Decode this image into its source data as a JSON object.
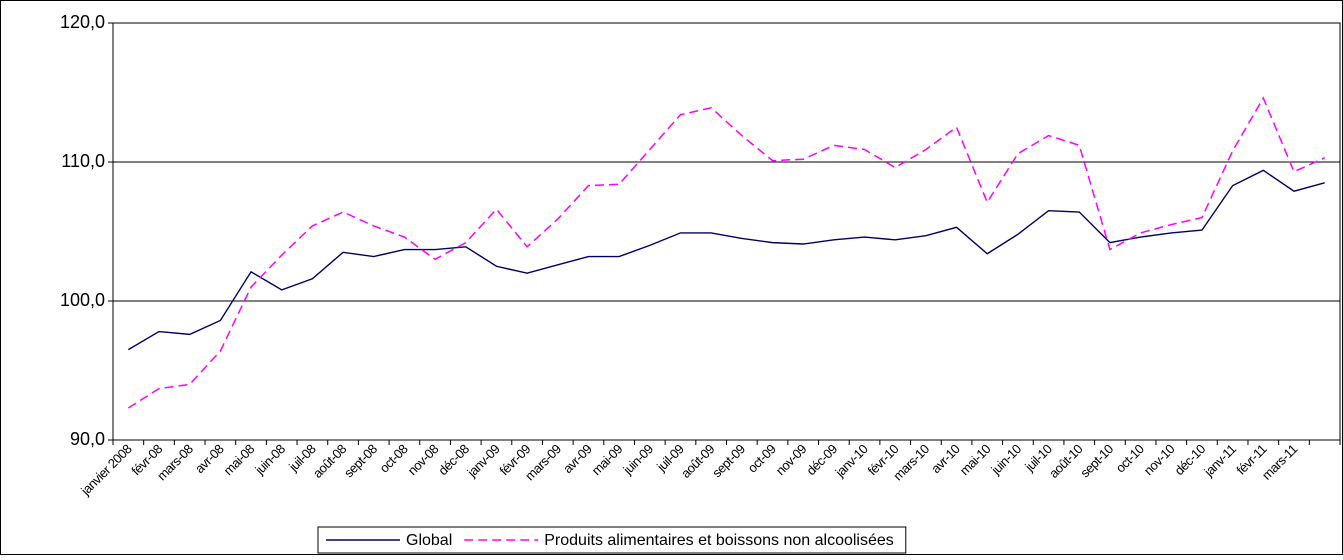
{
  "chart_data": {
    "type": "line",
    "categories": [
      "janvier 2008",
      "févr-08",
      "mars-08",
      "avr-08",
      "mai-08",
      "juin-08",
      "juil-08",
      "août-08",
      "sept-08",
      "oct-08",
      "nov-08",
      "déc-08",
      "janv-09",
      "févr-09",
      "mars-09",
      "avr-09",
      "mai-09",
      "juin-09",
      "juil-09",
      "août-09",
      "sept-09",
      "oct-09",
      "nov-09",
      "déc-09",
      "janv-10",
      "févr-10",
      "mars-10",
      "avr-10",
      "mai-10",
      "juin-10",
      "juil-10",
      "août-10",
      "sept-10",
      "oct-10",
      "nov-10",
      "déc-10",
      "janv-11",
      "févr-11",
      "mars-11",
      null
    ],
    "series": [
      {
        "name": "Global",
        "color": "#000066",
        "dash": false,
        "values": [
          96.5,
          97.8,
          97.6,
          98.6,
          102.1,
          100.8,
          101.6,
          103.5,
          103.2,
          103.7,
          103.7,
          103.9,
          102.5,
          102.0,
          102.6,
          103.2,
          103.2,
          104.0,
          104.9,
          104.9,
          104.5,
          104.2,
          104.1,
          104.4,
          104.6,
          104.4,
          104.7,
          105.3,
          103.4,
          104.8,
          106.5,
          106.4,
          104.2,
          104.6,
          104.9,
          105.1,
          108.3,
          109.4,
          107.9,
          108.5
        ]
      },
      {
        "name": "Produits alimentaires et boissons non alcoolisées",
        "color": "#ff00ff",
        "dash": true,
        "values": [
          92.3,
          93.7,
          94.0,
          96.4,
          101.0,
          103.3,
          105.4,
          106.4,
          105.4,
          104.6,
          103.0,
          104.2,
          106.6,
          103.9,
          105.9,
          108.3,
          108.4,
          110.9,
          113.4,
          113.9,
          111.9,
          110.1,
          110.2,
          111.2,
          110.9,
          109.6,
          110.9,
          112.5,
          107.1,
          110.6,
          111.9,
          111.2,
          103.7,
          104.9,
          105.5,
          106.0,
          110.8,
          114.6,
          109.3,
          110.3
        ]
      }
    ],
    "ylim": [
      90,
      120
    ],
    "yticks": [
      {
        "value": 90,
        "label": "90,0"
      },
      {
        "value": 100,
        "label": "100,0"
      },
      {
        "value": 110,
        "label": "110,0"
      },
      {
        "value": 120,
        "label": "120,0"
      }
    ],
    "grid": true,
    "legend": "bottom"
  }
}
